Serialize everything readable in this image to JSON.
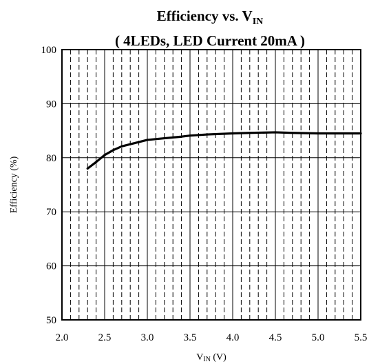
{
  "chart_data": {
    "type": "line",
    "title": {
      "main": "Efficiency vs. V",
      "main_subscript": "IN",
      "subtitle": "( 4LEDs, LED Current 20mA )"
    },
    "xlabel": {
      "main": "V",
      "subscript": "IN",
      "suffix": " (V)"
    },
    "ylabel": "Efficiency (%)",
    "xlim": [
      2.0,
      5.5
    ],
    "ylim": [
      50,
      100
    ],
    "xticks": [
      2.0,
      2.5,
      3.0,
      3.5,
      4.0,
      4.5,
      5.0,
      5.5
    ],
    "xtick_labels": [
      "2.0",
      "2.5",
      "3.0",
      "3.5",
      "4.0",
      "4.5",
      "5.0",
      "5.5"
    ],
    "yticks": [
      50,
      60,
      70,
      80,
      90,
      100
    ],
    "ytick_labels": [
      "50",
      "60",
      "70",
      "80",
      "90",
      "100"
    ],
    "x_minor_step": 0.1,
    "grid": true,
    "legend": "none",
    "colors": {
      "line": "#000000",
      "grid": "#000000",
      "background": "#ffffff"
    },
    "series": [
      {
        "x": [
          2.3,
          2.4,
          2.5,
          2.6,
          2.7,
          2.8,
          2.9,
          3.0,
          3.2,
          3.4,
          3.5,
          3.7,
          4.0,
          4.2,
          4.5,
          4.7,
          5.0,
          5.2,
          5.5
        ],
        "y": [
          78.0,
          79.2,
          80.5,
          81.4,
          82.1,
          82.5,
          82.9,
          83.3,
          83.6,
          83.9,
          84.1,
          84.3,
          84.5,
          84.6,
          84.7,
          84.6,
          84.5,
          84.5,
          84.5
        ]
      }
    ]
  }
}
